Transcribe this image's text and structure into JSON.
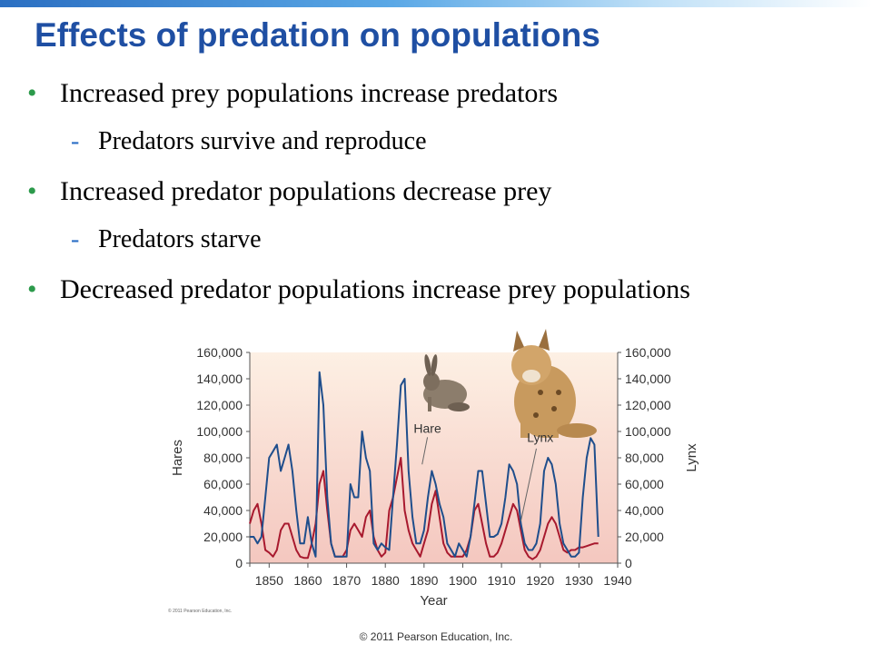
{
  "slide": {
    "title": "Effects of predation on populations",
    "bullets": [
      {
        "level": 1,
        "marker": "•",
        "text": "Increased prey populations increase predators"
      },
      {
        "level": 2,
        "marker": "-",
        "text": "Predators survive and reproduce"
      },
      {
        "level": 1,
        "marker": "•",
        "text": "Increased predator populations decrease prey"
      },
      {
        "level": 2,
        "marker": "-",
        "text": "Predators starve"
      },
      {
        "level": 1,
        "marker": "•",
        "text": "Decreased predator populations increase prey populations"
      }
    ],
    "footer": "© 2011 Pearson Education, Inc."
  },
  "chart_data": {
    "type": "line",
    "xlabel": "Year",
    "ylabel_left": "Hares",
    "ylabel_right": "Lynx",
    "xlim": [
      1845,
      1940
    ],
    "ylim": [
      0,
      160000
    ],
    "x_ticks": [
      1850,
      1860,
      1870,
      1880,
      1890,
      1900,
      1910,
      1920,
      1930,
      1940
    ],
    "y_ticks": [
      0,
      20000,
      40000,
      60000,
      80000,
      100000,
      120000,
      140000,
      160000
    ],
    "y_tick_labels": [
      "0",
      "20,000",
      "40,000",
      "60,000",
      "80,000",
      "100,000",
      "120,000",
      "140,000",
      "160,000"
    ],
    "grid": false,
    "credit": "© 2011 Pearson Education, Inc.",
    "annotations": [
      {
        "text": "Hare",
        "points_to": "hare",
        "x": 1889,
        "y": 97000
      },
      {
        "text": "Lynx",
        "points_to": "lynx",
        "x": 1915,
        "y": 32000
      }
    ],
    "colors": {
      "hare": "#1f4e8c",
      "lynx": "#a8192e",
      "bg_top": "#fdf0e4",
      "bg_bottom": "#f4c7bf"
    },
    "series": [
      {
        "name": "Hare",
        "x": [
          1845,
          1846,
          1847,
          1848,
          1849,
          1850,
          1851,
          1852,
          1853,
          1854,
          1855,
          1856,
          1857,
          1858,
          1859,
          1860,
          1861,
          1862,
          1863,
          1864,
          1865,
          1866,
          1867,
          1868,
          1869,
          1870,
          1871,
          1872,
          1873,
          1874,
          1875,
          1876,
          1877,
          1878,
          1879,
          1880,
          1881,
          1882,
          1883,
          1884,
          1885,
          1886,
          1887,
          1888,
          1889,
          1890,
          1891,
          1892,
          1893,
          1894,
          1895,
          1896,
          1897,
          1898,
          1899,
          1900,
          1901,
          1902,
          1903,
          1904,
          1905,
          1906,
          1907,
          1908,
          1909,
          1910,
          1911,
          1912,
          1913,
          1914,
          1915,
          1916,
          1917,
          1918,
          1919,
          1920,
          1921,
          1922,
          1923,
          1924,
          1925,
          1926,
          1927,
          1928,
          1929,
          1930,
          1931,
          1932,
          1933,
          1934,
          1935
        ],
        "y": [
          20000,
          20000,
          15000,
          20000,
          50000,
          80000,
          85000,
          90000,
          70000,
          80000,
          90000,
          70000,
          40000,
          15000,
          15000,
          35000,
          15000,
          5000,
          145000,
          120000,
          50000,
          15000,
          5000,
          5000,
          5000,
          5000,
          60000,
          50000,
          50000,
          100000,
          80000,
          70000,
          15000,
          10000,
          15000,
          12000,
          10000,
          50000,
          90000,
          135000,
          140000,
          70000,
          35000,
          15000,
          15000,
          25000,
          50000,
          70000,
          60000,
          45000,
          35000,
          15000,
          10000,
          5000,
          15000,
          10000,
          5000,
          20000,
          45000,
          70000,
          70000,
          45000,
          20000,
          20000,
          22000,
          30000,
          50000,
          75000,
          70000,
          60000,
          30000,
          15000,
          10000,
          10000,
          15000,
          30000,
          70000,
          80000,
          75000,
          60000,
          30000,
          15000,
          10000,
          5000,
          5000,
          8000,
          50000,
          80000,
          95000,
          90000,
          20000
        ]
      },
      {
        "name": "Lynx",
        "x": [
          1845,
          1846,
          1847,
          1848,
          1849,
          1850,
          1851,
          1852,
          1853,
          1854,
          1855,
          1856,
          1857,
          1858,
          1859,
          1860,
          1861,
          1862,
          1863,
          1864,
          1865,
          1866,
          1867,
          1868,
          1869,
          1870,
          1871,
          1872,
          1873,
          1874,
          1875,
          1876,
          1877,
          1878,
          1879,
          1880,
          1881,
          1882,
          1883,
          1884,
          1885,
          1886,
          1887,
          1888,
          1889,
          1890,
          1891,
          1892,
          1893,
          1894,
          1895,
          1896,
          1897,
          1898,
          1899,
          1900,
          1901,
          1902,
          1903,
          1904,
          1905,
          1906,
          1907,
          1908,
          1909,
          1910,
          1911,
          1912,
          1913,
          1914,
          1915,
          1916,
          1917,
          1918,
          1919,
          1920,
          1921,
          1922,
          1923,
          1924,
          1925,
          1926,
          1927,
          1928,
          1929,
          1930,
          1931,
          1932,
          1933,
          1934,
          1935
        ],
        "y": [
          30000,
          40000,
          45000,
          30000,
          10000,
          8000,
          5000,
          10000,
          25000,
          30000,
          30000,
          20000,
          10000,
          5000,
          4000,
          4000,
          15000,
          30000,
          60000,
          70000,
          40000,
          15000,
          5000,
          5000,
          5000,
          10000,
          25000,
          30000,
          25000,
          20000,
          35000,
          40000,
          20000,
          10000,
          5000,
          8000,
          40000,
          50000,
          65000,
          80000,
          40000,
          25000,
          15000,
          10000,
          5000,
          15000,
          25000,
          45000,
          55000,
          35000,
          15000,
          8000,
          5000,
          5000,
          5000,
          5000,
          10000,
          20000,
          40000,
          45000,
          30000,
          15000,
          5000,
          5000,
          8000,
          15000,
          25000,
          35000,
          45000,
          40000,
          25000,
          10000,
          5000,
          3000,
          5000,
          10000,
          20000,
          30000,
          35000,
          30000,
          20000,
          10000,
          8000,
          10000,
          10000,
          12000,
          12000,
          13000,
          14000,
          15000,
          15000
        ]
      }
    ]
  }
}
